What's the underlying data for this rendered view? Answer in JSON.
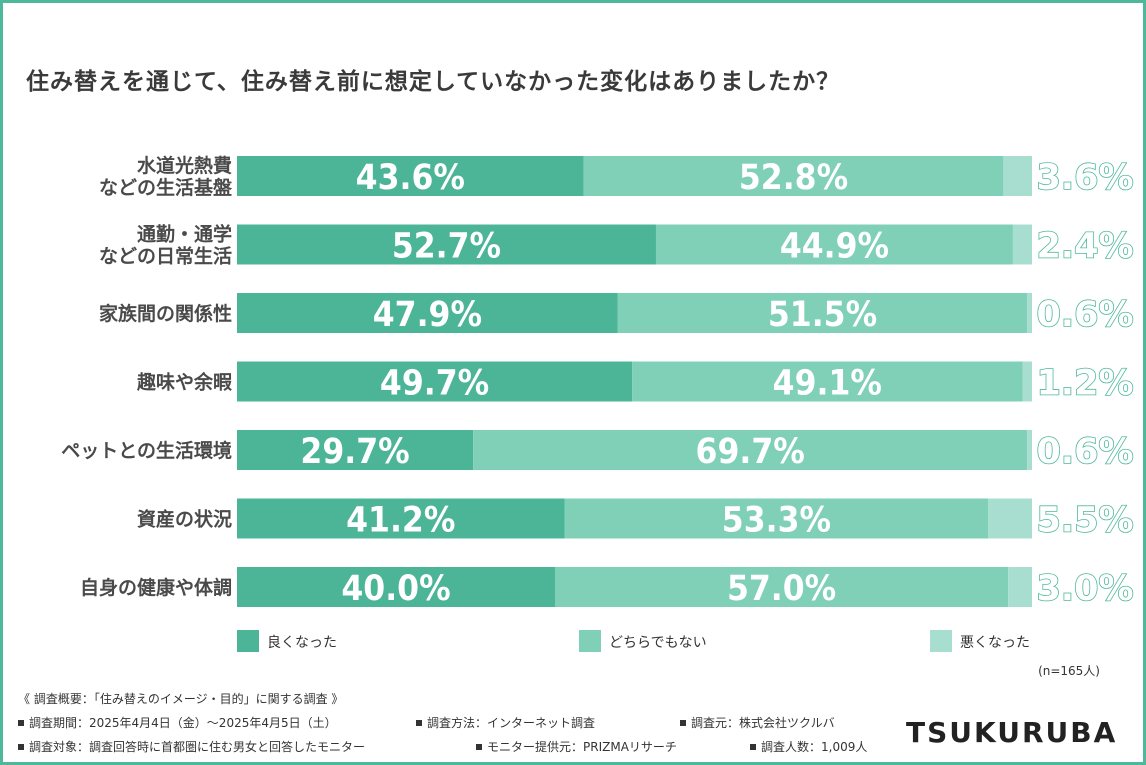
{
  "title": "住み替えを通じて、住み替え前に想定していなかった変化はありましたか？",
  "colors": {
    "good": "#4cb497",
    "neutral": "#7fd0b7",
    "bad": "#a8ded0",
    "outside_label": "#4db89a",
    "frame": "#4db89a"
  },
  "chart_data": {
    "type": "bar",
    "orientation": "horizontal",
    "stacked": true,
    "normalized": true,
    "categories": [
      [
        "水道光熱費",
        "などの生活基盤"
      ],
      [
        "通勤・通学",
        "などの日常生活"
      ],
      [
        "家族間の関係性"
      ],
      [
        "趣味や余暇"
      ],
      [
        "ペットとの生活環境"
      ],
      [
        "資産の状況"
      ],
      [
        "自身の健康や体調"
      ]
    ],
    "series": [
      {
        "name": "良くなった",
        "values": [
          43.6,
          52.7,
          47.9,
          49.7,
          29.7,
          41.2,
          40.0
        ],
        "labels": [
          "43.6%",
          "52.7%",
          "47.9%",
          "49.7%",
          "29.7%",
          "41.2%",
          "40.0%"
        ]
      },
      {
        "name": "どちらでもない",
        "values": [
          52.8,
          44.9,
          51.5,
          49.1,
          69.7,
          53.3,
          57.0
        ],
        "labels": [
          "52.8%",
          "44.9%",
          "51.5%",
          "49.1%",
          "69.7%",
          "53.3%",
          "57.0%"
        ]
      },
      {
        "name": "悪くなった",
        "values": [
          3.6,
          2.4,
          0.6,
          1.2,
          0.6,
          5.5,
          3.0
        ],
        "labels": [
          "3.6%",
          "2.4%",
          "0.6%",
          "1.2%",
          "0.6%",
          "5.5%",
          "3.0%"
        ]
      }
    ],
    "xlim": [
      0,
      100
    ],
    "legend_position": "bottom",
    "grid": false
  },
  "note": "(n=165人)",
  "footer": {
    "header": "《 調査概要：「住み替えのイメージ・目的」に関する調査 》",
    "items": [
      "調査期間：2025年4月4日（金）〜2025年4月5日（土）",
      "調査方法：インターネット調査",
      "調査元：株式会社ツクルバ",
      "調査対象：調査回答時に首都圏に住む男女と回答したモニター",
      "モニター提供元：PRIZMAリサーチ",
      "調査人数：1,009人"
    ]
  },
  "logo": "TSUKURUBA"
}
